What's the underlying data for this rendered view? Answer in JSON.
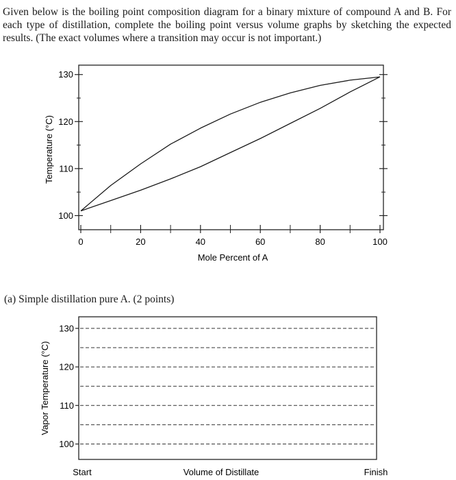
{
  "question": {
    "intro": "Given below is the boiling point composition diagram for a binary mixture of compound A and B. For each type of distillation, complete the boiling point versus volume graphs by sketching the expected results. (The exact volumes where a transition may occur is not important.)",
    "part_a": "(a) Simple distillation pure A. (2 points)"
  },
  "chart_data": [
    {
      "type": "line",
      "xlabel": "Mole Percent of A",
      "ylabel": "Temperature (°C)",
      "x_ticks": [
        "0",
        "20",
        "40",
        "60",
        "80",
        "100"
      ],
      "y_ticks": [
        "100",
        "110",
        "120",
        "130"
      ],
      "xlim": [
        0,
        100
      ],
      "ylim": [
        97,
        132
      ],
      "grid": false,
      "series": [
        {
          "curve": "upper",
          "x": [
            0,
            10,
            20,
            30,
            40,
            50,
            60,
            70,
            80,
            90,
            100
          ],
          "y": [
            101,
            106.4,
            111.0,
            115.2,
            118.6,
            121.6,
            124.1,
            126.1,
            127.7,
            128.8,
            129.5
          ]
        },
        {
          "curve": "lower",
          "x": [
            0,
            10,
            20,
            30,
            40,
            50,
            60,
            70,
            80,
            90,
            100
          ],
          "y": [
            101,
            103.2,
            105.4,
            107.8,
            110.4,
            113.4,
            116.4,
            119.6,
            122.8,
            126.3,
            129.5
          ]
        }
      ]
    },
    {
      "type": "line",
      "xlabel": "Volume of Distillate",
      "ylabel": "Vapor Temperature (°C)",
      "x_ticks": [
        "Start",
        "Finish"
      ],
      "y_ticks": [
        "100",
        "110",
        "120",
        "130"
      ],
      "ylim": [
        96,
        133
      ],
      "grid": true,
      "series": []
    }
  ]
}
